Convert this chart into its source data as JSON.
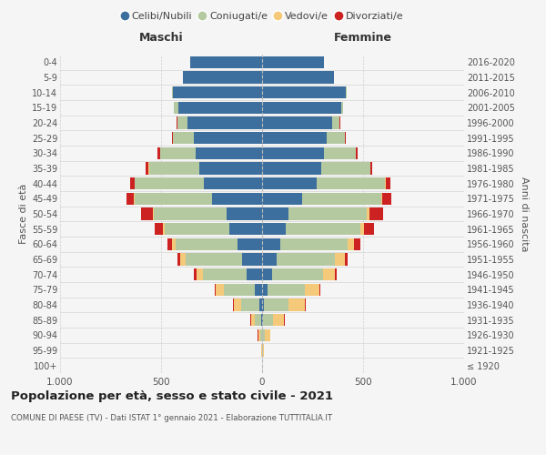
{
  "age_groups": [
    "100+",
    "95-99",
    "90-94",
    "85-89",
    "80-84",
    "75-79",
    "70-74",
    "65-69",
    "60-64",
    "55-59",
    "50-54",
    "45-49",
    "40-44",
    "35-39",
    "30-34",
    "25-29",
    "20-24",
    "15-19",
    "10-14",
    "5-9",
    "0-4"
  ],
  "birth_years": [
    "≤ 1920",
    "1921-1925",
    "1926-1930",
    "1931-1935",
    "1936-1940",
    "1941-1945",
    "1946-1950",
    "1951-1955",
    "1956-1960",
    "1961-1965",
    "1966-1970",
    "1971-1975",
    "1976-1980",
    "1981-1985",
    "1986-1990",
    "1991-1995",
    "1996-2000",
    "2001-2005",
    "2006-2010",
    "2011-2015",
    "2016-2020"
  ],
  "colors": {
    "celibe": "#3d6f9e",
    "coniugato": "#b5c9a1",
    "vedovo": "#f5c97a",
    "divorziato": "#cc2222"
  },
  "maschi": {
    "celibe": [
      0,
      0,
      2,
      5,
      15,
      35,
      75,
      100,
      120,
      160,
      175,
      250,
      290,
      310,
      330,
      340,
      370,
      415,
      440,
      390,
      355
    ],
    "coniugato": [
      0,
      2,
      8,
      30,
      90,
      155,
      220,
      280,
      310,
      320,
      360,
      380,
      340,
      250,
      175,
      100,
      50,
      20,
      5,
      2,
      1
    ],
    "vedovo": [
      0,
      3,
      10,
      20,
      35,
      40,
      30,
      25,
      15,
      10,
      5,
      3,
      2,
      2,
      1,
      1,
      1,
      0,
      0,
      0,
      0
    ],
    "divorziato": [
      0,
      0,
      1,
      2,
      5,
      5,
      12,
      12,
      25,
      40,
      60,
      40,
      20,
      15,
      10,
      5,
      2,
      1,
      0,
      0,
      0
    ]
  },
  "femmine": {
    "nubile": [
      0,
      0,
      2,
      4,
      10,
      25,
      50,
      70,
      90,
      115,
      130,
      200,
      270,
      295,
      305,
      320,
      345,
      390,
      415,
      355,
      305
    ],
    "coniugata": [
      0,
      3,
      12,
      50,
      120,
      185,
      250,
      290,
      335,
      370,
      390,
      390,
      340,
      240,
      160,
      90,
      40,
      12,
      3,
      1,
      0
    ],
    "vedova": [
      1,
      8,
      25,
      55,
      80,
      75,
      60,
      50,
      30,
      20,
      10,
      5,
      3,
      2,
      1,
      1,
      0,
      0,
      0,
      0,
      0
    ],
    "divorziata": [
      0,
      0,
      1,
      2,
      4,
      5,
      10,
      12,
      30,
      50,
      70,
      45,
      20,
      10,
      5,
      3,
      1,
      0,
      0,
      0,
      0
    ]
  },
  "title": "Popolazione per età, sesso e stato civile - 2021",
  "subtitle": "COMUNE DI PAESE (TV) - Dati ISTAT 1° gennaio 2021 - Elaborazione TUTTITALIA.IT",
  "xlabel_left": "Maschi",
  "xlabel_right": "Femmine",
  "ylabel_left": "Fasce di età",
  "ylabel_right": "Anni di nascita",
  "xlim": 1000,
  "legend_labels": [
    "Celibi/Nubili",
    "Coniugati/e",
    "Vedovi/e",
    "Divorziati/e"
  ],
  "background_color": "#f5f5f5",
  "grid_color": "#cccccc"
}
